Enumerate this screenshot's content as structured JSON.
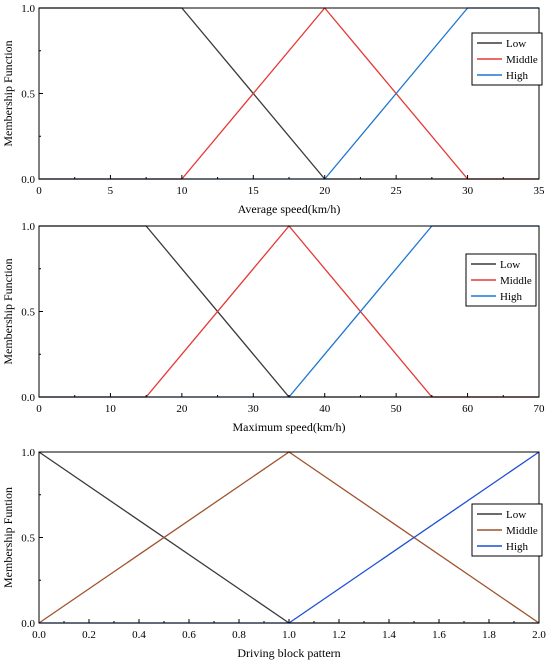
{
  "chart_data": [
    {
      "type": "line",
      "xlabel": "Average speed(km/h)",
      "ylabel": "Membership Function",
      "xlim": [
        0,
        35
      ],
      "ylim": [
        0,
        1
      ],
      "xticks": [
        "0",
        "5",
        "10",
        "15",
        "20",
        "25",
        "30",
        "35"
      ],
      "yticks": [
        "0.0",
        "0.5",
        "1.0"
      ],
      "legend_position": "top-right",
      "grid": false,
      "series": [
        {
          "name": "Low",
          "color": "#3a3a3a",
          "points": [
            [
              0,
              1
            ],
            [
              10,
              1
            ],
            [
              20,
              0
            ],
            [
              35,
              0
            ]
          ]
        },
        {
          "name": "Middle",
          "color": "#e53935",
          "points": [
            [
              0,
              0
            ],
            [
              10,
              0
            ],
            [
              20,
              1
            ],
            [
              30,
              0
            ],
            [
              35,
              0
            ]
          ]
        },
        {
          "name": "High",
          "color": "#1f77d0",
          "points": [
            [
              0,
              0
            ],
            [
              20,
              0
            ],
            [
              30,
              1
            ],
            [
              35,
              1
            ]
          ]
        }
      ]
    },
    {
      "type": "line",
      "xlabel": "Maximum speed(km/h)",
      "ylabel": "Membership Function",
      "xlim": [
        0,
        70
      ],
      "ylim": [
        0,
        1
      ],
      "xticks": [
        "0",
        "10",
        "20",
        "30",
        "40",
        "50",
        "60",
        "70"
      ],
      "yticks": [
        "0.0",
        "0.5",
        "1.0"
      ],
      "legend_position": "top-right",
      "grid": false,
      "series": [
        {
          "name": "Low",
          "color": "#3a3a3a",
          "points": [
            [
              0,
              1
            ],
            [
              15,
              1
            ],
            [
              35,
              0
            ],
            [
              70,
              0
            ]
          ]
        },
        {
          "name": "Middle",
          "color": "#e53935",
          "points": [
            [
              0,
              0
            ],
            [
              15,
              0
            ],
            [
              35,
              1
            ],
            [
              55,
              0
            ],
            [
              70,
              0
            ]
          ]
        },
        {
          "name": "High",
          "color": "#1f77d0",
          "points": [
            [
              0,
              0
            ],
            [
              35,
              0
            ],
            [
              55,
              1
            ],
            [
              70,
              1
            ]
          ]
        }
      ]
    },
    {
      "type": "line",
      "xlabel": "Driving block pattern",
      "ylabel": "Membership Funtion",
      "xlim": [
        0,
        2
      ],
      "ylim": [
        0,
        1
      ],
      "xticks": [
        "0.0",
        "0.2",
        "0.4",
        "0.6",
        "0.8",
        "1.0",
        "1.2",
        "1.4",
        "1.6",
        "1.8",
        "2.0"
      ],
      "yticks": [
        "0.0",
        "0.5",
        "1.0"
      ],
      "legend_position": "top-right",
      "grid": false,
      "series": [
        {
          "name": "Low",
          "color": "#3a3a3a",
          "points": [
            [
              0,
              1
            ],
            [
              1,
              0
            ],
            [
              2,
              0
            ]
          ]
        },
        {
          "name": "Middle",
          "color": "#a0522d",
          "points": [
            [
              0,
              0
            ],
            [
              1,
              1
            ],
            [
              2,
              0
            ]
          ]
        },
        {
          "name": "High",
          "color": "#1f4fd6",
          "points": [
            [
              0,
              0
            ],
            [
              1,
              0
            ],
            [
              2,
              1
            ]
          ]
        }
      ]
    }
  ]
}
